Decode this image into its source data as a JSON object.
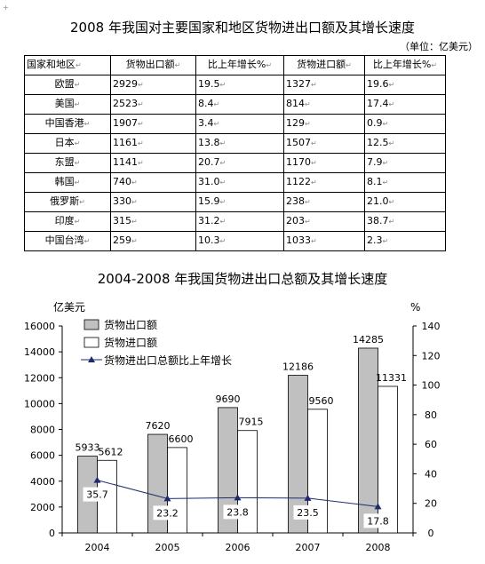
{
  "table": {
    "title": "2008 年我国对主要国家和地区货物进出口额及其增长速度",
    "unit": "（单位：亿美元）",
    "headers": [
      "国家和地区",
      "货物出口额",
      "比上年增长%",
      "货物进口额",
      "比上年增长%"
    ],
    "rows": [
      [
        "欧盟",
        "2929",
        "19.5",
        "1327",
        "19.6"
      ],
      [
        "美国",
        "2523",
        "8.4",
        "814",
        "17.4"
      ],
      [
        "中国香港",
        "1907",
        "3.4",
        "129",
        "0.9"
      ],
      [
        "日本",
        "1161",
        "13.8",
        "1507",
        "12.5"
      ],
      [
        "东盟",
        "1141",
        "20.7",
        "1170",
        "7.9"
      ],
      [
        "韩国",
        "740",
        "31.0",
        "1122",
        "8.1"
      ],
      [
        "俄罗斯",
        "330",
        "15.9",
        "238",
        "21.0"
      ],
      [
        "印度",
        "315",
        "31.2",
        "203",
        "38.7"
      ],
      [
        "中国台湾",
        "259",
        "10.3",
        "1033",
        "2.3"
      ]
    ],
    "cell_mark": "↵"
  },
  "chart_data": {
    "type": "bar",
    "title": "2004-2008 年我国货物进出口总额及其增长速度",
    "ylabel_left": "亿美元",
    "ylabel_right": "%",
    "categories": [
      "2004",
      "2005",
      "2006",
      "2007",
      "2008"
    ],
    "series": [
      {
        "name": "货物出口额",
        "type": "bar",
        "color": "#c0c0c0",
        "values": [
          5933,
          7620,
          9690,
          12186,
          14285
        ]
      },
      {
        "name": "货物进口额",
        "type": "bar",
        "color": "#ffffff",
        "values": [
          5612,
          6600,
          7915,
          9560,
          11331
        ]
      },
      {
        "name": "货物进出口总额比上年增长",
        "type": "line",
        "color": "#1f2a6e",
        "axis": "right",
        "values": [
          35.7,
          23.2,
          23.8,
          23.5,
          17.8
        ]
      }
    ],
    "ylim_left": [
      0,
      16000
    ],
    "yticks_left": [
      0,
      2000,
      4000,
      6000,
      8000,
      10000,
      12000,
      14000,
      16000
    ],
    "ylim_right": [
      0,
      140
    ],
    "yticks_right": [
      0,
      20,
      40,
      60,
      80,
      100,
      120,
      140
    ],
    "legend_position": "top-left",
    "grid": false
  }
}
